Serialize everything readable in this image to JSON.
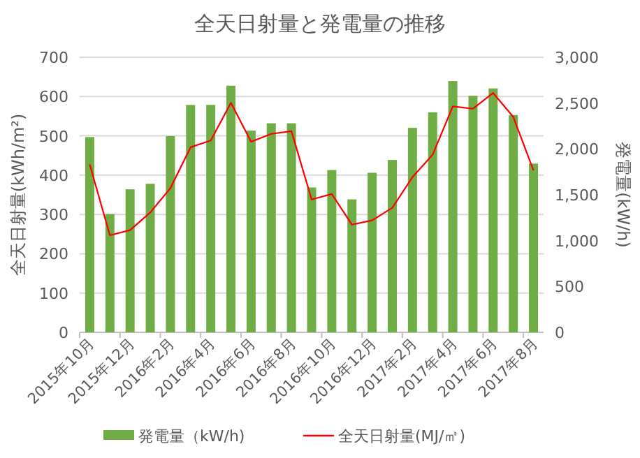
{
  "chart_data": {
    "type": "bar",
    "title": "全天日射量と発電量の推移",
    "ylabel": "全天日射量(kWh/m²)",
    "y2label": "発電量(kW/h)",
    "categories": [
      "2015年10月",
      null,
      "2015年12月",
      null,
      "2016年2月",
      null,
      "2016年4月",
      null,
      "2016年6月",
      null,
      "2016年8月",
      null,
      "2016年10月",
      null,
      "2016年12月",
      null,
      "2017年2月",
      null,
      "2017年4月",
      null,
      "2017年6月",
      null,
      "2017年8月"
    ],
    "series": [
      {
        "name": "発電量（kW/h)",
        "axis": "y2",
        "color": "#70ad47",
        "values": [
          2130,
          1290,
          1560,
          1620,
          2140,
          2480,
          2480,
          2690,
          2200,
          2280,
          2280,
          1580,
          1770,
          1450,
          1740,
          1880,
          2230,
          2400,
          2740,
          2580,
          2660,
          2370,
          1840
        ]
      },
      {
        "name": "全天日射量(MJ/㎡)",
        "type": "line",
        "color": "#ff0000",
        "values": [
          427,
          247,
          260,
          305,
          367,
          471,
          488,
          584,
          485,
          505,
          512,
          338,
          352,
          274,
          285,
          317,
          395,
          452,
          575,
          569,
          609,
          548,
          412
        ]
      }
    ],
    "ylim": [
      0,
      700
    ],
    "yticks": [
      0,
      100,
      200,
      300,
      400,
      500,
      600,
      700
    ],
    "y2lim": [
      0,
      3000
    ],
    "y2ticks": [
      0,
      500,
      {
        "value": 1000,
        "label": "1,000"
      },
      {
        "value": 1500,
        "label": "1,500"
      },
      {
        "value": 2000,
        "label": "2,000"
      },
      {
        "value": 2500,
        "label": "2,500"
      },
      {
        "value": 3000,
        "label": "3,000"
      }
    ],
    "grid": "y",
    "legend": "bottom"
  }
}
